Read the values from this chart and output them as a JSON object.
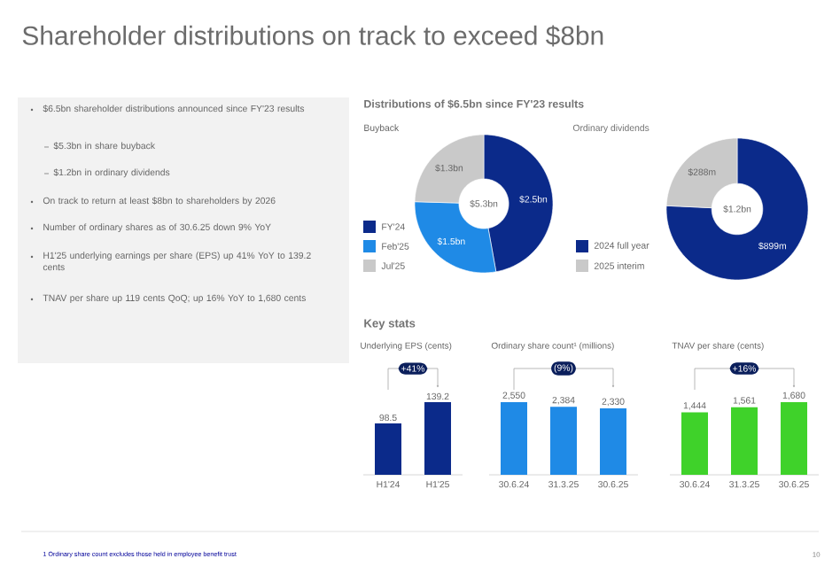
{
  "chart_data": [
    {
      "type": "other",
      "title": "Shareholder distributions on track to exceed $8bn",
      "annotations": [
        "$6.5bn shareholder distributions announced since FY'23 results",
        "$5.3bn in share buyback",
        "$1.2bn in ordinary dividends",
        "On track to return at least $8bn to shareholders by 2026",
        "Number of ordinary shares as of 30.6.25 down 9% YoY",
        "H1'25 underlying earnings per share (EPS) up 41% YoY to 139.2 cents",
        "TNAV per share up 119 cents QoQ; up 16% YoY to 1,680 cents",
        "1 Ordinary share count excludes those held in employee benefit trust",
        "10"
      ]
    },
    {
      "type": "donut",
      "title": "Distributions of $6.5bn since FY'23 results",
      "subtitle": "Buyback",
      "categories": [
        "FY'24",
        "Feb'25",
        "Jul'25"
      ],
      "values": [
        2.5,
        1.5,
        1.3
      ],
      "colors": [
        "#0b2a8a",
        "#1f8ae6",
        "#c9c9c9"
      ],
      "value_labels": [
        "$2.5bn",
        "$1.5bn",
        "$1.3bn"
      ],
      "annotations": [
        "$5.3bn"
      ],
      "legend": "left"
    },
    {
      "type": "donut",
      "title": "Ordinary dividends",
      "categories": [
        "2024 full year",
        "2025 interim"
      ],
      "values": [
        899,
        288
      ],
      "colors": [
        "#0b2a8a",
        "#c9c9c9"
      ],
      "value_labels": [
        "$899m",
        "$288m"
      ],
      "annotations": [
        "$1.2bn"
      ],
      "legend": "left"
    },
    {
      "type": "bar",
      "title": "Key stats",
      "subtitle": "Underlying EPS (cents)",
      "categories": [
        "H1'24",
        "H1'25"
      ],
      "values": [
        98.5,
        139.2
      ],
      "color": "#0b2a8a",
      "value_labels": [
        "98.5",
        "139.2"
      ],
      "annotations": [
        "+41%"
      ]
    },
    {
      "type": "bar",
      "subtitle": "Ordinary share count¹ (millions)",
      "categories": [
        "30.6.24",
        "31.3.25",
        "30.6.25"
      ],
      "values": [
        2550,
        2384,
        2330
      ],
      "color": "#1f8ae6",
      "value_labels": [
        "2,550",
        "2,384",
        "2,330"
      ],
      "annotations": [
        "(9%)"
      ]
    },
    {
      "type": "bar",
      "subtitle": "TNAV per share (cents)",
      "categories": [
        "30.6.24",
        "31.3.25",
        "30.6.25"
      ],
      "values": [
        1444,
        1561,
        1680
      ],
      "color": "#3fd22a",
      "value_labels": [
        "1,444",
        "1,561",
        "1,680"
      ],
      "annotations": [
        "+16%"
      ]
    }
  ]
}
